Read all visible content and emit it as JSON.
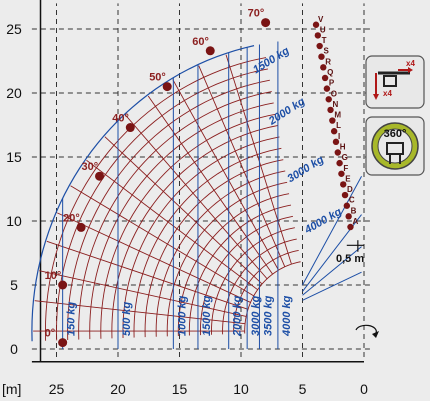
{
  "chart_data": {
    "type": "line",
    "xlabel": "[m]",
    "ylabel": "",
    "xlim": [
      25,
      0
    ],
    "ylim": [
      0,
      25
    ],
    "x_ticks": [
      "25",
      "20",
      "15",
      "10",
      "5",
      "0"
    ],
    "y_ticks": [
      "0",
      "5",
      "10",
      "15",
      "20",
      "25"
    ],
    "boom_angles": [
      {
        "label": "0°",
        "x": 24.5,
        "y": 0.5
      },
      {
        "label": "10°",
        "x": 24.5,
        "y": 5.0
      },
      {
        "label": "20°",
        "x": 23.0,
        "y": 9.5
      },
      {
        "label": "30°",
        "x": 21.5,
        "y": 13.5
      },
      {
        "label": "40°",
        "x": 19.0,
        "y": 17.3
      },
      {
        "label": "50°",
        "x": 16.0,
        "y": 20.5
      },
      {
        "label": "60°",
        "x": 12.5,
        "y": 23.3
      },
      {
        "label": "70°",
        "x": 8.0,
        "y": 25.5
      }
    ],
    "extension_letters": [
      "V",
      "U",
      "T",
      "S",
      "R",
      "Q",
      "P",
      "O",
      "N",
      "M",
      "L",
      "I",
      "H",
      "G",
      "F",
      "E",
      "D",
      "C",
      "B",
      "A"
    ],
    "load_zones": [
      {
        "label": "150 kg",
        "max_reach": 24.5
      },
      {
        "label": "500 kg",
        "max_reach": 20.0
      },
      {
        "label": "1000 kg",
        "max_reach": 15.5
      },
      {
        "label": "1500 kg",
        "max_reach": 13.5
      },
      {
        "label": "2000 kg",
        "max_reach": 11.0
      },
      {
        "label": "3000 kg",
        "max_reach": 9.5
      },
      {
        "label": "3500 kg",
        "max_reach": 8.5
      },
      {
        "label": "4000 kg",
        "max_reach": 7.0
      }
    ],
    "curved_load_labels": [
      "1500 kg",
      "2000 kg",
      "3000 kg",
      "4000 kg"
    ],
    "annotation": "0,5 m",
    "grid": true
  },
  "icons": [
    {
      "name": "outrigger-icon",
      "labels": [
        "x4",
        "x4"
      ]
    },
    {
      "name": "rotation-360-icon",
      "label": "360°"
    }
  ],
  "colors": {
    "grid": "#8b1f1f",
    "envelope": "#1d4fa6",
    "point": "#7a1414",
    "background": "#ececec",
    "icon_red": "#b01818"
  }
}
